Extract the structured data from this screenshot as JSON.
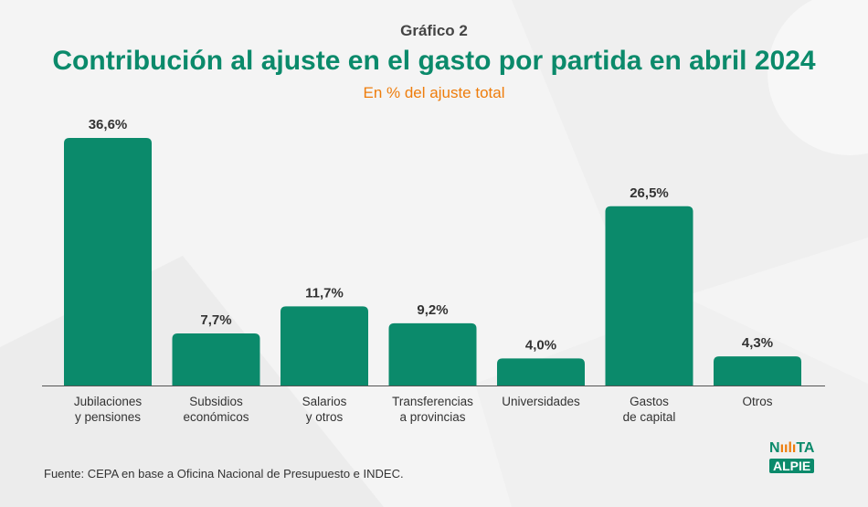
{
  "header": {
    "kicker": "Gráfico 2",
    "title": "Contribución al ajuste en el gasto por partida en abril 2024",
    "subtitle": "En % del ajuste total"
  },
  "footer": {
    "source": "Fuente: CEPA en base a Oficina Nacional de Presupuesto e INDEC."
  },
  "logo": {
    "line1": "N",
    "line1_rest": "TA",
    "line2": "ALPIE"
  },
  "colors": {
    "bar": "#0b8a6b",
    "title": "#0b8a6b",
    "subtitle": "#ee7d0c",
    "axis": "#555555",
    "label": "#333333"
  },
  "chart_data": {
    "type": "bar",
    "categories": [
      [
        "Jubilaciones",
        "y pensiones"
      ],
      [
        "Subsidios",
        "económicos"
      ],
      [
        "Salarios",
        "y otros"
      ],
      [
        "Transferencias",
        "a provincias"
      ],
      [
        "Universidades"
      ],
      [
        "Gastos",
        "de capital"
      ],
      [
        "Otros"
      ]
    ],
    "values": [
      36.6,
      7.7,
      11.7,
      9.2,
      4.0,
      26.5,
      4.3
    ],
    "value_labels": [
      "36,6%",
      "7,7%",
      "11,7%",
      "9,2%",
      "4,0%",
      "26,5%",
      "4,3%"
    ],
    "ylim": [
      0,
      36.6
    ],
    "grid": false,
    "legend": "none"
  }
}
